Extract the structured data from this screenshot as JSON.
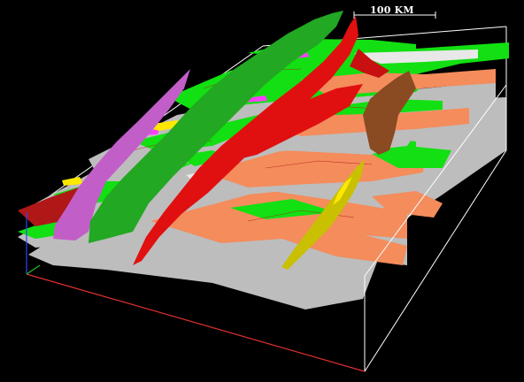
{
  "scale_bar": {
    "label": "100 KM"
  },
  "scene": {
    "background": "#000000",
    "bounding_box_color": "#ffffff",
    "axis_colors": {
      "x": "#e03030",
      "y": "#2848ff",
      "z": "#20c020"
    },
    "layer_colors": {
      "green": "#12e012",
      "orange": "#f48c5c",
      "grey": "#bdbdbd",
      "white": "#e8e8e8",
      "magenta": "#ff40ff",
      "yellow": "#ffe800"
    },
    "fault_colors": {
      "dark_green": "#22a822",
      "red": "#e01010",
      "violet": "#c25ec8",
      "brown": "#8a4a22",
      "yellow": "#c8c000",
      "dark_red": "#b01818"
    }
  }
}
